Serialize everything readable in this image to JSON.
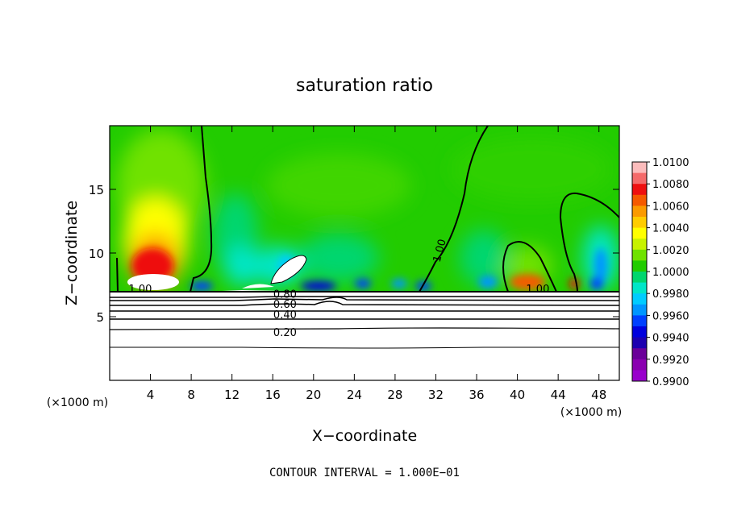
{
  "chart_data": {
    "type": "heatmap",
    "title": "saturation ratio",
    "xlabel": "X−coordinate",
    "ylabel": "Z−coordinate",
    "x_unit_left": "(×1000 m)",
    "x_unit_right": "(×1000 m)",
    "footer": "CONTOUR INTERVAL = 1.000E−01",
    "xlim": [
      0,
      50
    ],
    "ylim": [
      0,
      20
    ],
    "x_ticks": [
      4,
      8,
      12,
      16,
      20,
      24,
      28,
      32,
      36,
      40,
      44,
      48
    ],
    "x_tick_labels": [
      "4",
      "8",
      "12",
      "16",
      "20",
      "24",
      "28",
      "32",
      "36",
      "40",
      "44",
      "48"
    ],
    "y_ticks": [
      5,
      10,
      15
    ],
    "y_tick_labels": [
      "5",
      "10",
      "15"
    ],
    "colorbar": {
      "min": 0.99,
      "max": 1.01,
      "labels": [
        "1.0100",
        "1.0080",
        "1.0060",
        "1.0040",
        "1.0020",
        "1.0000",
        "0.9980",
        "0.9960",
        "0.9940",
        "0.9920",
        "0.9900"
      ],
      "colors": [
        "#fbbcbc",
        "#f46a6a",
        "#ee1010",
        "#f55a00",
        "#fb9a00",
        "#ffcc00",
        "#ffff00",
        "#c7f200",
        "#6fe200",
        "#22cc00",
        "#00d66e",
        "#00e6c8",
        "#00ccff",
        "#0096ff",
        "#0040ff",
        "#0000dd",
        "#1c00b0",
        "#6a0099",
        "#8a00b0",
        "#9900cc"
      ]
    },
    "contour_labels": [
      {
        "text": "1.00",
        "x": 3.0,
        "z": 7.2
      },
      {
        "text": "1.00",
        "x": 32.3,
        "z": 10.2
      },
      {
        "text": "1.00",
        "x": 42.0,
        "z": 7.2
      },
      {
        "text": "0.80",
        "x": 17.2,
        "z": 6.8
      },
      {
        "text": "0.60",
        "x": 17.2,
        "z": 6.0
      },
      {
        "text": "0.40",
        "x": 17.2,
        "z": 5.2
      },
      {
        "text": "0.20",
        "x": 17.2,
        "z": 3.8
      }
    ]
  }
}
